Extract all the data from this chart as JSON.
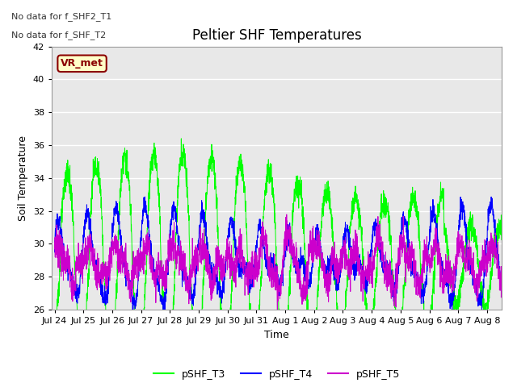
{
  "title": "Peltier SHF Temperatures",
  "xlabel": "Time",
  "ylabel": "Soil Temperature",
  "ylim": [
    26,
    42
  ],
  "xlim_days": [
    -0.1,
    15.5
  ],
  "x_tick_labels": [
    "Jul 24",
    "Jul 25",
    "Jul 26",
    "Jul 27",
    "Jul 28",
    "Jul 29",
    "Jul 30",
    "Jul 31",
    "Aug 1",
    "Aug 2",
    "Aug 3",
    "Aug 4",
    "Aug 5",
    "Aug 6",
    "Aug 7",
    "Aug 8"
  ],
  "x_tick_positions": [
    0,
    1,
    2,
    3,
    4,
    5,
    6,
    7,
    8,
    9,
    10,
    11,
    12,
    13,
    14,
    15
  ],
  "no_data_text": [
    "No data for f_SHF2_T1",
    "No data for f_SHF_T2"
  ],
  "vr_met_label": "VR_met",
  "colors": {
    "pSHF_T3": "#00FF00",
    "pSHF_T4": "#0000FF",
    "pSHF_T5": "#CC00CC",
    "background": "#E8E8E8",
    "legend_box_fill": "#FFFFC8",
    "legend_box_edge": "#8B0000"
  },
  "legend_labels": [
    "pSHF_T3",
    "pSHF_T4",
    "pSHF_T5"
  ],
  "legend_colors": [
    "#00FF00",
    "#0000FF",
    "#CC00CC"
  ],
  "title_fontsize": 12,
  "axis_label_fontsize": 9,
  "tick_label_fontsize": 8
}
